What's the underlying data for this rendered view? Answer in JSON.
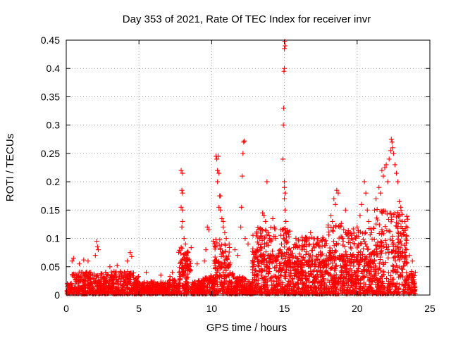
{
  "chart_data": {
    "type": "scatter",
    "title": "Day 353 of 2021, Rate Of TEC Index for receiver invr",
    "xlabel": "GPS time / hours",
    "ylabel": "ROTI / TECUs",
    "xlim": [
      0,
      25
    ],
    "ylim": [
      0,
      0.45
    ],
    "xticks": [
      0,
      5,
      10,
      15,
      20,
      25
    ],
    "xtick_labels": [
      "0",
      "5",
      "10",
      "15",
      "20",
      "25"
    ],
    "yticks": [
      0,
      0.05,
      0.1,
      0.15,
      0.2,
      0.25,
      0.3,
      0.35,
      0.4,
      0.45
    ],
    "ytick_labels": [
      "0",
      "0.05",
      "0.1",
      "0.15",
      "0.2",
      "0.25",
      "0.3",
      "0.35",
      "0.4",
      "0.45"
    ],
    "grid": true,
    "marker": "+",
    "color": "#ff0000",
    "series": [
      {
        "name": "ROTI",
        "points": [
          [
            0.4,
            0.06
          ],
          [
            0.5,
            0.065
          ],
          [
            0.9,
            0.055
          ],
          [
            1.2,
            0.062
          ],
          [
            1.5,
            0.06
          ],
          [
            2.0,
            0.07
          ],
          [
            2.1,
            0.095
          ],
          [
            2.15,
            0.085
          ],
          [
            2.2,
            0.08
          ],
          [
            3.0,
            0.05
          ],
          [
            3.5,
            0.052
          ],
          [
            4.2,
            0.06
          ],
          [
            4.4,
            0.075
          ],
          [
            4.5,
            0.068
          ],
          [
            5.5,
            0.04
          ],
          [
            6.5,
            0.035
          ],
          [
            7.3,
            0.04
          ],
          [
            7.9,
            0.22
          ],
          [
            8.0,
            0.215
          ],
          [
            7.95,
            0.185
          ],
          [
            8.0,
            0.18
          ],
          [
            7.9,
            0.155
          ],
          [
            8.0,
            0.15
          ],
          [
            8.0,
            0.13
          ],
          [
            7.95,
            0.12
          ],
          [
            8.1,
            0.1
          ],
          [
            8.2,
            0.09
          ],
          [
            8.3,
            0.075
          ],
          [
            8.5,
            0.06
          ],
          [
            9.0,
            0.055
          ],
          [
            9.5,
            0.06
          ],
          [
            9.6,
            0.08
          ],
          [
            9.7,
            0.12
          ],
          [
            9.8,
            0.115
          ],
          [
            10.1,
            0.095
          ],
          [
            10.2,
            0.09
          ],
          [
            10.3,
            0.245
          ],
          [
            10.35,
            0.24
          ],
          [
            10.45,
            0.245
          ],
          [
            10.4,
            0.22
          ],
          [
            10.5,
            0.215
          ],
          [
            10.4,
            0.2
          ],
          [
            10.55,
            0.175
          ],
          [
            10.6,
            0.175
          ],
          [
            10.5,
            0.155
          ],
          [
            10.6,
            0.15
          ],
          [
            10.7,
            0.135
          ],
          [
            10.8,
            0.13
          ],
          [
            10.8,
            0.12
          ],
          [
            10.9,
            0.11
          ],
          [
            11.0,
            0.1
          ],
          [
            11.2,
            0.09
          ],
          [
            11.6,
            0.08
          ],
          [
            11.8,
            0.07
          ],
          [
            12.0,
            0.12
          ],
          [
            12.05,
            0.155
          ],
          [
            12.1,
            0.21
          ],
          [
            12.15,
            0.25
          ],
          [
            12.2,
            0.27
          ],
          [
            12.25,
            0.272
          ],
          [
            12.3,
            0.1
          ],
          [
            12.5,
            0.09
          ],
          [
            12.9,
            0.075
          ],
          [
            13.2,
            0.09
          ],
          [
            13.5,
            0.145
          ],
          [
            13.6,
            0.14
          ],
          [
            13.7,
            0.13
          ],
          [
            13.8,
            0.2
          ],
          [
            13.9,
            0.11
          ],
          [
            14.0,
            0.1
          ],
          [
            14.2,
            0.135
          ],
          [
            14.3,
            0.12
          ],
          [
            14.4,
            0.1
          ],
          [
            14.7,
            0.08
          ],
          [
            14.8,
            0.09
          ],
          [
            14.9,
            0.24
          ],
          [
            14.93,
            0.3
          ],
          [
            14.95,
            0.33
          ],
          [
            14.97,
            0.395
          ],
          [
            15.0,
            0.4
          ],
          [
            15.0,
            0.435
          ],
          [
            15.02,
            0.448
          ],
          [
            15.05,
            0.44
          ],
          [
            15.0,
            0.2
          ],
          [
            15.0,
            0.19
          ],
          [
            15.05,
            0.18
          ],
          [
            15.0,
            0.17
          ],
          [
            15.05,
            0.15
          ],
          [
            15.1,
            0.13
          ],
          [
            15.1,
            0.11
          ],
          [
            15.15,
            0.075
          ],
          [
            15.3,
            0.06
          ],
          [
            15.5,
            0.07
          ],
          [
            15.8,
            0.09
          ],
          [
            16.2,
            0.08
          ],
          [
            16.5,
            0.1
          ],
          [
            16.8,
            0.11
          ],
          [
            17.0,
            0.09
          ],
          [
            17.3,
            0.1
          ],
          [
            17.6,
            0.095
          ],
          [
            18.0,
            0.12
          ],
          [
            18.2,
            0.14
          ],
          [
            18.3,
            0.13
          ],
          [
            18.4,
            0.17
          ],
          [
            18.5,
            0.16
          ],
          [
            18.6,
            0.185
          ],
          [
            18.7,
            0.18
          ],
          [
            18.8,
            0.12
          ],
          [
            19.0,
            0.1
          ],
          [
            19.2,
            0.15
          ],
          [
            19.4,
            0.11
          ],
          [
            19.6,
            0.1
          ],
          [
            19.8,
            0.09
          ],
          [
            20.0,
            0.12
          ],
          [
            20.2,
            0.14
          ],
          [
            20.3,
            0.16
          ],
          [
            20.5,
            0.2
          ],
          [
            20.6,
            0.18
          ],
          [
            20.7,
            0.15
          ],
          [
            20.8,
            0.13
          ],
          [
            21.0,
            0.11
          ],
          [
            21.2,
            0.15
          ],
          [
            21.3,
            0.17
          ],
          [
            21.5,
            0.19
          ],
          [
            21.6,
            0.18
          ],
          [
            21.7,
            0.22
          ],
          [
            21.8,
            0.21
          ],
          [
            21.9,
            0.225
          ],
          [
            22.0,
            0.23
          ],
          [
            22.1,
            0.2
          ],
          [
            22.2,
            0.24
          ],
          [
            22.3,
            0.255
          ],
          [
            22.35,
            0.275
          ],
          [
            22.4,
            0.27
          ],
          [
            22.45,
            0.26
          ],
          [
            22.5,
            0.25
          ],
          [
            22.6,
            0.23
          ],
          [
            22.7,
            0.215
          ],
          [
            22.8,
            0.2
          ],
          [
            22.9,
            0.165
          ],
          [
            23.0,
            0.155
          ],
          [
            23.1,
            0.13
          ],
          [
            23.2,
            0.11
          ],
          [
            23.4,
            0.08
          ],
          [
            23.6,
            0.07
          ],
          [
            23.8,
            0.06
          ],
          [
            24.0,
            0.04
          ]
        ],
        "noise": "dense baseline scatter of ROTI values 0 to ~0.05 TECU/min across 0 to 24 h, with elevated clusters near 8, 10.5, 12, 13.5-15, 18-19 and 20-23.5 h"
      }
    ]
  }
}
